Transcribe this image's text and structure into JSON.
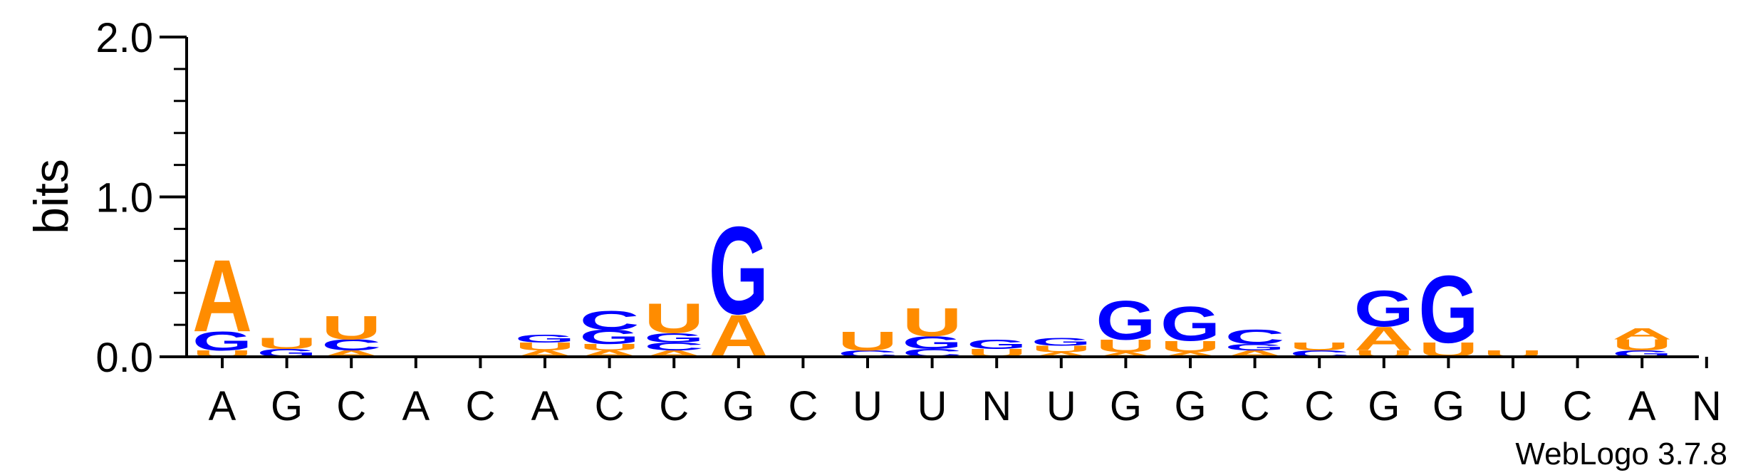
{
  "chart_data": {
    "type": "sequence-logo",
    "ylabel": "bits",
    "ylim": [
      0,
      2.0
    ],
    "yticks": [
      "0.0",
      "1.0",
      "2.0"
    ],
    "xlabels": [
      "A",
      "G",
      "C",
      "A",
      "C",
      "A",
      "C",
      "C",
      "G",
      "C",
      "U",
      "U",
      "N",
      "U",
      "G",
      "G",
      "C",
      "C",
      "G",
      "G",
      "U",
      "C",
      "A",
      "N"
    ],
    "colors": {
      "A": "#ff8c00",
      "U": "#ff8c00",
      "G": "#0000ff",
      "C": "#0000ff"
    },
    "stacks": [
      [
        [
          "U",
          0.04
        ],
        [
          "G",
          0.12
        ],
        [
          "A",
          0.46
        ]
      ],
      [
        [
          "G",
          0.05
        ],
        [
          "U",
          0.07
        ]
      ],
      [
        [
          "A",
          0.04
        ],
        [
          "C",
          0.07
        ],
        [
          "U",
          0.15
        ]
      ],
      [],
      [],
      [
        [
          "A",
          0.04
        ],
        [
          "U",
          0.05
        ],
        [
          "G",
          0.05
        ]
      ],
      [
        [
          "A",
          0.04
        ],
        [
          "U",
          0.04
        ],
        [
          "G",
          0.09
        ],
        [
          "C",
          0.12
        ]
      ],
      [
        [
          "A",
          0.04
        ],
        [
          "C",
          0.05
        ],
        [
          "G",
          0.06
        ],
        [
          "U",
          0.19
        ]
      ],
      [
        [
          "A",
          0.27
        ],
        [
          "G",
          0.56
        ]
      ],
      [],
      [
        [
          "C",
          0.04
        ],
        [
          "U",
          0.12
        ]
      ],
      [
        [
          "C",
          0.05
        ],
        [
          "G",
          0.08
        ],
        [
          "U",
          0.18
        ]
      ],
      [
        [
          "U",
          0.05
        ],
        [
          "G",
          0.06
        ]
      ],
      [
        [
          "A",
          0.03
        ],
        [
          "U",
          0.04
        ],
        [
          "G",
          0.05
        ]
      ],
      [
        [
          "A",
          0.03
        ],
        [
          "U",
          0.08
        ],
        [
          "G",
          0.25
        ]
      ],
      [
        [
          "A",
          0.03
        ],
        [
          "U",
          0.07
        ],
        [
          "G",
          0.22
        ]
      ],
      [
        [
          "A",
          0.04
        ],
        [
          "G",
          0.04
        ],
        [
          "C",
          0.09
        ]
      ],
      [
        [
          "C",
          0.04
        ],
        [
          "U",
          0.05
        ]
      ],
      [
        [
          "U",
          0.04
        ],
        [
          "A",
          0.15
        ],
        [
          "G",
          0.23
        ]
      ],
      [
        [
          "U",
          0.09
        ],
        [
          "G",
          0.43
        ]
      ],
      [
        [
          "U",
          0.04
        ]
      ],
      [],
      [
        [
          "G",
          0.04
        ],
        [
          "U",
          0.07
        ],
        [
          "A",
          0.07
        ]
      ],
      []
    ]
  },
  "credit": "WebLogo 3.7.8"
}
